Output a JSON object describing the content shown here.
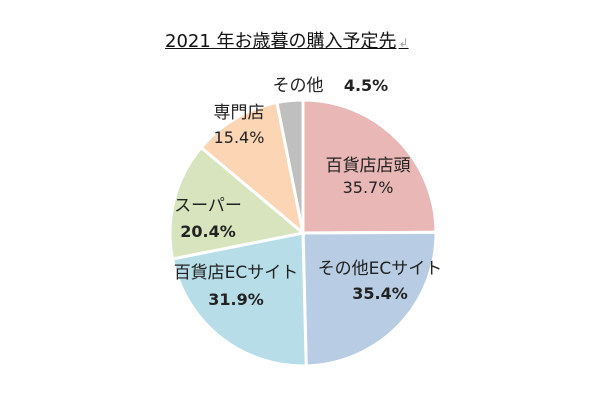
{
  "chart_data": {
    "type": "pie",
    "title": "2021 年お歳暮の購入予定先",
    "title_mark": "↲",
    "slices": [
      {
        "name": "百貨店店頭",
        "value": 35.7,
        "label": "35.7%",
        "color": "#e8b7b6"
      },
      {
        "name": "その他ECサイト",
        "value": 35.4,
        "label": "35.4%",
        "color": "#b8cce4"
      },
      {
        "name": "百貨店ECサイト",
        "value": 31.9,
        "label": "31.9%",
        "color": "#b7dde8"
      },
      {
        "name": "スーパー",
        "value": 20.4,
        "label": "20.4%",
        "color": "#d7e4bd"
      },
      {
        "name": "専門店",
        "value": 15.4,
        "label": "15.4%",
        "color": "#fcd5b5"
      },
      {
        "name": "その他",
        "value": 4.5,
        "label": "4.5%",
        "color": "#bfbfbf"
      }
    ]
  }
}
